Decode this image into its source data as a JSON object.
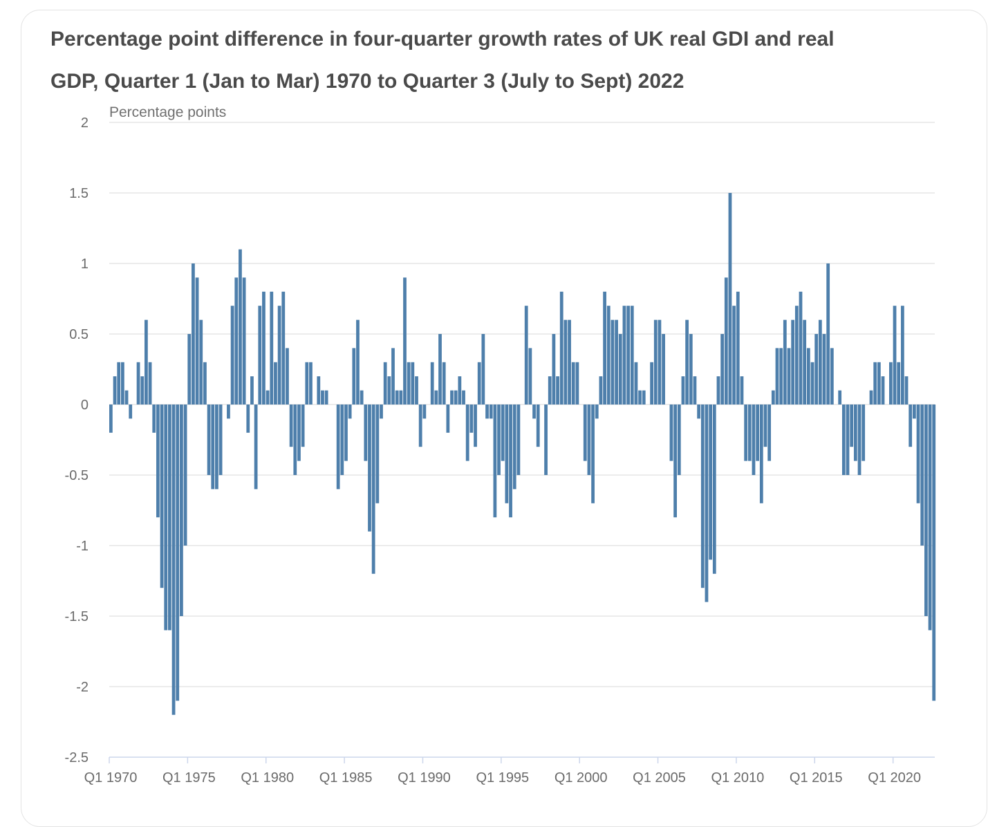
{
  "chart_data": {
    "type": "bar",
    "title": "Percentage point difference in four-quarter growth rates of UK real GDI and real GDP, Quarter 1 (Jan to Mar) 1970 to Quarter 3 (July to Sept) 2022",
    "ylabel": "Percentage points",
    "xlabel": "",
    "ylim": [
      -2.5,
      2
    ],
    "yticks": [
      "2",
      "1.5",
      "1",
      "0.5",
      "0",
      "-0.5",
      "-1",
      "-1.5",
      "-2",
      "-2.5"
    ],
    "ytick_values": [
      2,
      1.5,
      1,
      0.5,
      0,
      -0.5,
      -1,
      -1.5,
      -2,
      -2.5
    ],
    "xticks": [
      "Q1 1970",
      "Q1 1975",
      "Q1 1980",
      "Q1 1985",
      "Q1 1990",
      "Q1 1995",
      "Q1 2000",
      "Q1 2005",
      "Q1 2010",
      "Q1 2015",
      "Q1 2020"
    ],
    "first_period": "Q1 1970",
    "last_period": "Q3 2022",
    "grid": true,
    "bar_color": "#4e7fab",
    "values": [
      -0.2,
      0.2,
      0.3,
      0.3,
      0.1,
      -0.1,
      0,
      0.3,
      0.2,
      0.6,
      0.3,
      -0.2,
      -0.8,
      -1.3,
      -1.6,
      -1.6,
      -2.2,
      -2.1,
      -1.5,
      -1.0,
      0.5,
      1.0,
      0.9,
      0.6,
      0.3,
      -0.5,
      -0.6,
      -0.6,
      -0.5,
      0,
      -0.1,
      0.7,
      0.9,
      1.1,
      0.9,
      -0.2,
      0.2,
      -0.6,
      0.7,
      0.8,
      0.1,
      0.8,
      0.3,
      0.7,
      0.8,
      0.4,
      -0.3,
      -0.5,
      -0.4,
      -0.3,
      0.3,
      0.3,
      0,
      0.2,
      0.1,
      0.1,
      0,
      0,
      -0.6,
      -0.5,
      -0.4,
      -0.1,
      0.4,
      0.6,
      0.1,
      -0.4,
      -0.9,
      -1.2,
      -0.7,
      -0.1,
      0.3,
      0.2,
      0.4,
      0.1,
      0.1,
      0.9,
      0.3,
      0.3,
      0.2,
      -0.3,
      -0.1,
      0,
      0.3,
      0.1,
      0.5,
      0.3,
      -0.2,
      0.1,
      0.1,
      0.2,
      0.1,
      -0.4,
      -0.2,
      -0.3,
      0.3,
      0.5,
      -0.1,
      -0.1,
      -0.8,
      -0.5,
      -0.4,
      -0.7,
      -0.8,
      -0.6,
      -0.5,
      0,
      0.7,
      0.4,
      -0.1,
      -0.3,
      0,
      -0.5,
      0.2,
      0.5,
      0.2,
      0.8,
      0.6,
      0.6,
      0.3,
      0.3,
      0,
      -0.4,
      -0.5,
      -0.7,
      -0.1,
      0.2,
      0.8,
      0.7,
      0.6,
      0.6,
      0.5,
      0.7,
      0.7,
      0.7,
      0.3,
      0.1,
      0.1,
      0,
      0.3,
      0.6,
      0.6,
      0.5,
      0,
      -0.4,
      -0.8,
      -0.5,
      0.2,
      0.6,
      0.5,
      0.2,
      -0.1,
      -1.3,
      -1.4,
      -1.1,
      -1.2,
      0.2,
      0.5,
      0.9,
      1.5,
      0.7,
      0.8,
      0.2,
      -0.4,
      -0.4,
      -0.5,
      -0.4,
      -0.7,
      -0.3,
      -0.4,
      0.1,
      0.4,
      0.4,
      0.6,
      0.4,
      0.6,
      0.7,
      0.8,
      0.6,
      0.4,
      0.3,
      0.5,
      0.6,
      0.5,
      1.0,
      0.4,
      0,
      0.1,
      -0.5,
      -0.5,
      -0.3,
      -0.4,
      -0.5,
      -0.4,
      0,
      0.1,
      0.3,
      0.3,
      0.2,
      0,
      0.3,
      0.7,
      0.3,
      0.7,
      0.2,
      -0.3,
      -0.1,
      -0.7,
      -1.0,
      -1.5,
      -1.6,
      -2.1
    ]
  }
}
